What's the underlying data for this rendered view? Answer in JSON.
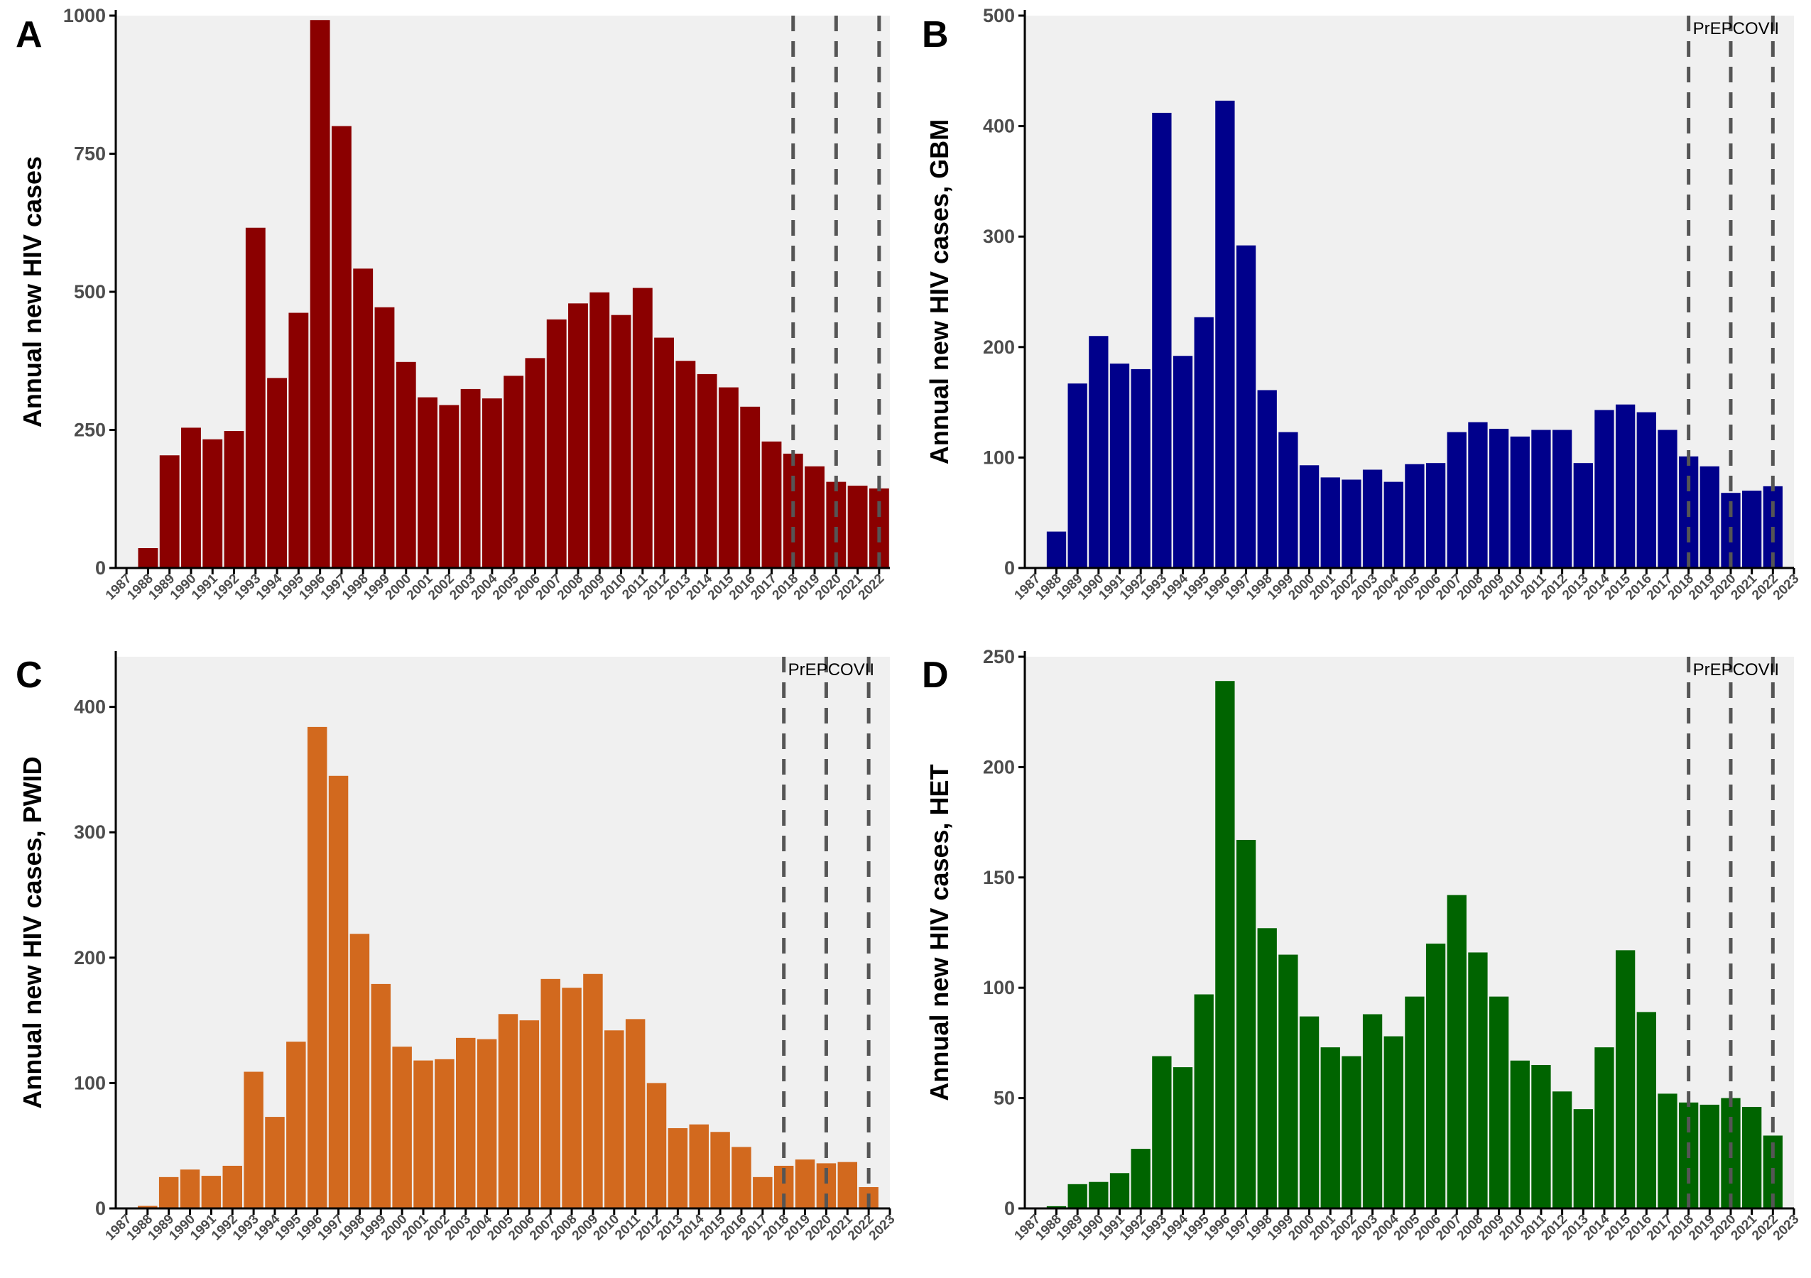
{
  "chart_data": [
    {
      "panel": "A",
      "type": "bar",
      "color": "#8B0000",
      "ylabel": "Annual new HIV cases",
      "ylim": [
        0,
        1000
      ],
      "yticks": [
        0,
        250,
        500,
        750,
        1000
      ],
      "x": [
        1988,
        1989,
        1990,
        1991,
        1992,
        1993,
        1994,
        1995,
        1996,
        1997,
        1998,
        1999,
        2000,
        2001,
        2002,
        2003,
        2004,
        2005,
        2006,
        2007,
        2008,
        2009,
        2010,
        2011,
        2012,
        2013,
        2014,
        2015,
        2016,
        2017,
        2018,
        2019,
        2020,
        2021,
        2022
      ],
      "values": [
        36,
        204,
        254,
        233,
        248,
        616,
        344,
        462,
        992,
        800,
        542,
        472,
        373,
        309,
        295,
        324,
        307,
        348,
        380,
        450,
        479,
        499,
        458,
        507,
        417,
        375,
        351,
        327,
        292,
        229,
        207,
        184,
        156,
        149,
        144
      ],
      "xtick_labels": [
        "1987",
        "1988",
        "1989",
        "1990",
        "1991",
        "1992",
        "1993",
        "1994",
        "1995",
        "1996",
        "1997",
        "1998",
        "1999",
        "2000",
        "2001",
        "2002",
        "2003",
        "2004",
        "2005",
        "2006",
        "2007",
        "2008",
        "2009",
        "2010",
        "2011",
        "2012",
        "2013",
        "2014",
        "2015",
        "2016",
        "2017",
        "2018",
        "2019",
        "2020",
        "2021",
        "2022"
      ],
      "vlines": [
        2018,
        2020,
        2022
      ],
      "vline_labels": [],
      "xmin": 1986.5,
      "xmax": 2022.5
    },
    {
      "panel": "B",
      "type": "bar",
      "color": "#00008B",
      "ylabel": "Annual new HIV cases, GBM",
      "ylim": [
        0,
        500
      ],
      "yticks": [
        0,
        100,
        200,
        300,
        400,
        500
      ],
      "x": [
        1988,
        1989,
        1990,
        1991,
        1992,
        1993,
        1994,
        1995,
        1996,
        1997,
        1998,
        1999,
        2000,
        2001,
        2002,
        2003,
        2004,
        2005,
        2006,
        2007,
        2008,
        2009,
        2010,
        2011,
        2012,
        2013,
        2014,
        2015,
        2016,
        2017,
        2018,
        2019,
        2020,
        2021,
        2022
      ],
      "values": [
        33,
        167,
        210,
        185,
        180,
        412,
        192,
        227,
        423,
        292,
        161,
        123,
        93,
        82,
        80,
        89,
        78,
        94,
        95,
        123,
        132,
        126,
        119,
        125,
        125,
        95,
        143,
        148,
        141,
        125,
        101,
        92,
        68,
        70,
        74
      ],
      "xtick_labels": [
        "1987",
        "1988",
        "1989",
        "1990",
        "1991",
        "1992",
        "1993",
        "1994",
        "1995",
        "1996",
        "1997",
        "1998",
        "1999",
        "2000",
        "2001",
        "2002",
        "2003",
        "2004",
        "2005",
        "2006",
        "2007",
        "2008",
        "2009",
        "2010",
        "2011",
        "2012",
        "2013",
        "2014",
        "2015",
        "2016",
        "2017",
        "2018",
        "2019",
        "2020",
        "2021",
        "2022",
        "2023"
      ],
      "vlines": [
        2018,
        2020,
        2022
      ],
      "vline_labels": [
        "PrEP",
        "COVID",
        ""
      ],
      "annotation": "PrEPCOVII",
      "xmin": 1986.5,
      "xmax": 2023
    },
    {
      "panel": "C",
      "type": "bar",
      "color": "#D2691E",
      "ylabel": "Annual new HIV cases, PWID",
      "ylim": [
        0,
        440
      ],
      "yticks": [
        0,
        100,
        200,
        300,
        400
      ],
      "x": [
        1988,
        1989,
        1990,
        1991,
        1992,
        1993,
        1994,
        1995,
        1996,
        1997,
        1998,
        1999,
        2000,
        2001,
        2002,
        2003,
        2004,
        2005,
        2006,
        2007,
        2008,
        2009,
        2010,
        2011,
        2012,
        2013,
        2014,
        2015,
        2016,
        2017,
        2018,
        2019,
        2020,
        2021,
        2022
      ],
      "values": [
        2,
        25,
        31,
        26,
        34,
        109,
        73,
        133,
        384,
        345,
        219,
        179,
        129,
        118,
        119,
        136,
        135,
        155,
        150,
        183,
        176,
        187,
        142,
        151,
        100,
        64,
        67,
        61,
        49,
        25,
        34,
        39,
        36,
        37,
        17
      ],
      "xtick_labels": [
        "1987",
        "1988",
        "1989",
        "1990",
        "1991",
        "1992",
        "1993",
        "1994",
        "1995",
        "1996",
        "1997",
        "1998",
        "1999",
        "2000",
        "2001",
        "2002",
        "2003",
        "2004",
        "2005",
        "2006",
        "2007",
        "2008",
        "2009",
        "2010",
        "2011",
        "2012",
        "2013",
        "2014",
        "2015",
        "2016",
        "2017",
        "2018",
        "2019",
        "2020",
        "2021",
        "2022",
        "2023"
      ],
      "vlines": [
        2018,
        2020,
        2022
      ],
      "vline_labels": [
        "PrEP",
        "COVID",
        ""
      ],
      "annotation": "PrEPCOVII",
      "xmin": 1986.5,
      "xmax": 2023
    },
    {
      "panel": "D",
      "type": "bar",
      "color": "#006400",
      "ylabel": "Annual new HIV cases, HET",
      "ylim": [
        0,
        250
      ],
      "yticks": [
        0,
        50,
        100,
        150,
        200,
        250
      ],
      "x": [
        1988,
        1989,
        1990,
        1991,
        1992,
        1993,
        1994,
        1995,
        1996,
        1997,
        1998,
        1999,
        2000,
        2001,
        2002,
        2003,
        2004,
        2005,
        2006,
        2007,
        2008,
        2009,
        2010,
        2011,
        2012,
        2013,
        2014,
        2015,
        2016,
        2017,
        2018,
        2019,
        2020,
        2021,
        2022
      ],
      "values": [
        1,
        11,
        12,
        16,
        27,
        69,
        64,
        97,
        239,
        167,
        127,
        115,
        87,
        73,
        69,
        88,
        78,
        96,
        120,
        142,
        116,
        96,
        67,
        65,
        53,
        45,
        73,
        117,
        89,
        52,
        48,
        47,
        50,
        46,
        33
      ],
      "xtick_labels": [
        "1987",
        "1988",
        "1989",
        "1990",
        "1991",
        "1992",
        "1993",
        "1994",
        "1995",
        "1996",
        "1997",
        "1998",
        "1999",
        "2000",
        "2001",
        "2002",
        "2003",
        "2004",
        "2005",
        "2006",
        "2007",
        "2008",
        "2009",
        "2010",
        "2011",
        "2012",
        "2013",
        "2014",
        "2015",
        "2016",
        "2017",
        "2018",
        "2019",
        "2020",
        "2021",
        "2022",
        "2023"
      ],
      "vlines": [
        2018,
        2020,
        2022
      ],
      "vline_labels": [
        "PrEP",
        "COVID",
        ""
      ],
      "annotation": "PrEPCOVII",
      "xmin": 1986.5,
      "xmax": 2023
    }
  ],
  "colors": {
    "panel_background": "#F0F0F0",
    "axis": "#000000",
    "tick_text": "#4D4D4D",
    "vline": "#555555"
  }
}
